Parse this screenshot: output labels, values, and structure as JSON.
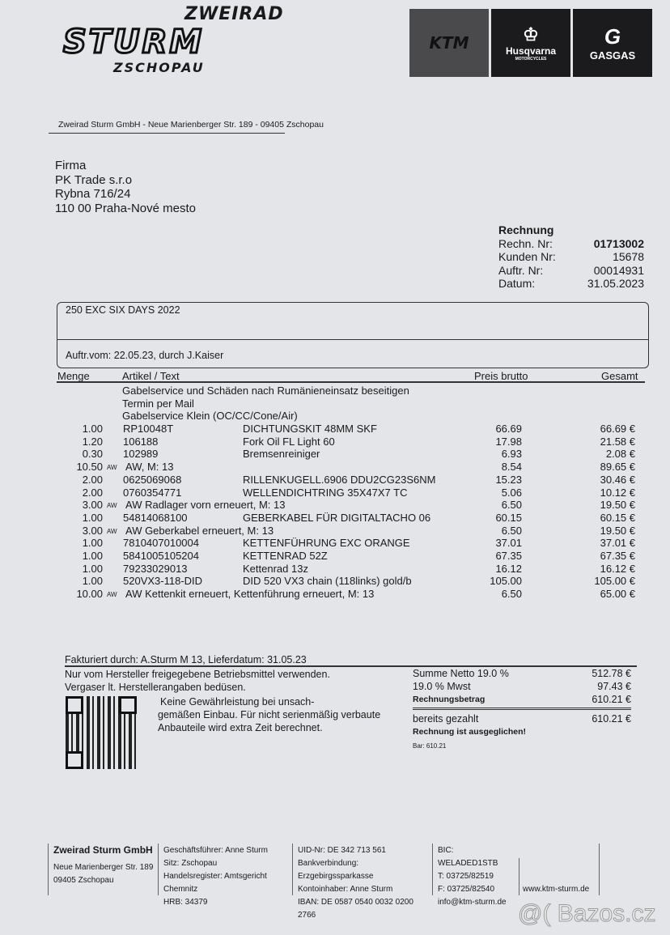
{
  "logo": {
    "line1": "ZWEIRAD",
    "line2": "STURM",
    "line3": "ZSCHOPAU"
  },
  "brands": [
    {
      "name": "KTM",
      "color": "#4a4a4c"
    },
    {
      "name": "Husqvarna",
      "sub": "MOTORCYCLES",
      "color": "#1b1b1d"
    },
    {
      "name": "GASGAS",
      "color": "#1b1b1d"
    }
  ],
  "sender": "Zweirad Sturm GmbH - Neue Marienberger Str. 189 - 09405 Zschopau",
  "recipient": [
    "Firma",
    "PK Trade s.r.o",
    "Rybna 716/24",
    "110 00 Praha-Nové mesto"
  ],
  "invoice": {
    "title": "Rechnung",
    "fields": [
      {
        "label": "Rechn. Nr:",
        "value": "01713002"
      },
      {
        "label": "Kunden Nr:",
        "value": "15678"
      },
      {
        "label": "Auftr. Nr:",
        "value": "00014931"
      },
      {
        "label": "Datum:",
        "value": "31.05.2023"
      }
    ]
  },
  "vehicle": "250 EXC SIX DAYS 2022",
  "order_info": "Auftr.vom: 22.05.23, durch J.Kaiser",
  "table": {
    "headers": {
      "qty": "Menge",
      "article": "Artikel / Text",
      "price": "Preis brutto",
      "total": "Gesamt"
    },
    "notes": [
      "Gabelservice und Schäden nach Rumänieneinsatz beseitigen",
      "Termin per Mail",
      "Gabelservice Klein (OC/CC/Cone/Air)"
    ],
    "rows": [
      {
        "qty": "1.00",
        "unit": "",
        "article": "RP10048T",
        "desc": "DICHTUNGSKIT 48MM SKF",
        "price": "66.69",
        "total": "66.69 €"
      },
      {
        "qty": "1.20",
        "unit": "",
        "article": "106188",
        "desc": "Fork Oil FL Light  60",
        "price": "17.98",
        "total": "21.58 €"
      },
      {
        "qty": "0.30",
        "unit": "",
        "article": "102989",
        "desc": "Bremsenreiniger",
        "price": "6.93",
        "total": "2.08 €"
      },
      {
        "qty": "10.50",
        "unit": "AW",
        "article": "AW, M: 13",
        "desc": "",
        "price": "8.54",
        "total": "89.65 €"
      },
      {
        "qty": "2.00",
        "unit": "",
        "article": "0625069068",
        "desc": "RILLENKUGELL.6906 DDU2CG23S6NM",
        "price": "15.23",
        "total": "30.46 €"
      },
      {
        "qty": "2.00",
        "unit": "",
        "article": "0760354771",
        "desc": "WELLENDICHTRING 35X47X7 TC",
        "price": "5.06",
        "total": "10.12 €"
      },
      {
        "qty": "3.00",
        "unit": "AW",
        "article": "AW Radlager vorn erneuert, M: 13",
        "desc": "",
        "price": "6.50",
        "total": "19.50 €"
      },
      {
        "qty": "1.00",
        "unit": "",
        "article": "54814068100",
        "desc": "GEBERKABEL FÜR DIGITALTACHO 06",
        "price": "60.15",
        "total": "60.15 €"
      },
      {
        "qty": "3.00",
        "unit": "AW",
        "article": "AW Geberkabel erneuert, M: 13",
        "desc": "",
        "price": "6.50",
        "total": "19.50 €"
      },
      {
        "qty": "1.00",
        "unit": "",
        "article": "7810407010004",
        "desc": "KETTENFÜHRUNG EXC ORANGE",
        "price": "37.01",
        "total": "37.01 €"
      },
      {
        "qty": "1.00",
        "unit": "",
        "article": "5841005105204",
        "desc": "KETTENRAD 52Z",
        "price": "67.35",
        "total": "67.35 €"
      },
      {
        "qty": "1.00",
        "unit": "",
        "article": "79233029013",
        "desc": "Kettenrad 13z",
        "price": "16.12",
        "total": "16.12 €"
      },
      {
        "qty": "1.00",
        "unit": "",
        "article": "520VX3-118-DID",
        "desc": "DID 520 VX3 chain (118links) gold/b",
        "price": "105.00",
        "total": "105.00 €"
      },
      {
        "qty": "10.00",
        "unit": "AW",
        "article": "AW Kettenkit erneuert, Kettenführung erneuert, M: 13",
        "desc": "",
        "price": "6.50",
        "total": "65.00 €"
      }
    ]
  },
  "billed_by": "Fakturiert durch: A.Sturm M 13, Lieferdatum: 31.05.23",
  "notes": [
    "Nur vom Hersteller freigegebene Betriebsmittel verwenden.",
    "Vergaser lt. Herstellerangaben bedüsen."
  ],
  "notes2": [
    "Keine Gewährleistung bei unsach-",
    "gemäßen Einbau. Für nicht serienmäßig verbaute",
    "Anbauteile wird extra Zeit berechnet."
  ],
  "summary": {
    "net_label": "Summe Netto 19.0 %",
    "net": "512.78 €",
    "vat_label": "19.0 % Mwst",
    "vat": "97.43 €",
    "total_label": "Rechnungsbetrag",
    "total": "610.21 €",
    "paid_label": "bereits gezahlt",
    "paid": "610.21 €",
    "settled": "Rechnung ist ausgeglichen!",
    "cash": "Bar: 610.21"
  },
  "footer": {
    "col1": [
      "Zweirad Sturm GmbH",
      "Neue Marienberger Str. 189",
      "09405 Zschopau"
    ],
    "col2": [
      "Geschäftsführer: Anne Sturm",
      "Sitz: Zschopau",
      "Handelsregister: Amtsgericht Chemnitz",
      "HRB: 34379"
    ],
    "col3": [
      "UID-Nr: DE 342 713 561",
      "Bankverbindung: Erzgebirgssparkasse",
      "Kontoinhaber: Anne Sturm",
      "IBAN: DE 0587 0540 0032 0200 2766"
    ],
    "col4": [
      "BIC: WELADED1STB",
      "T: 03725/82519",
      "F: 03725/82540",
      "info@ktm-sturm.de"
    ],
    "col5": "www.ktm-sturm.de"
  },
  "watermark": "@( Bazos.cz"
}
